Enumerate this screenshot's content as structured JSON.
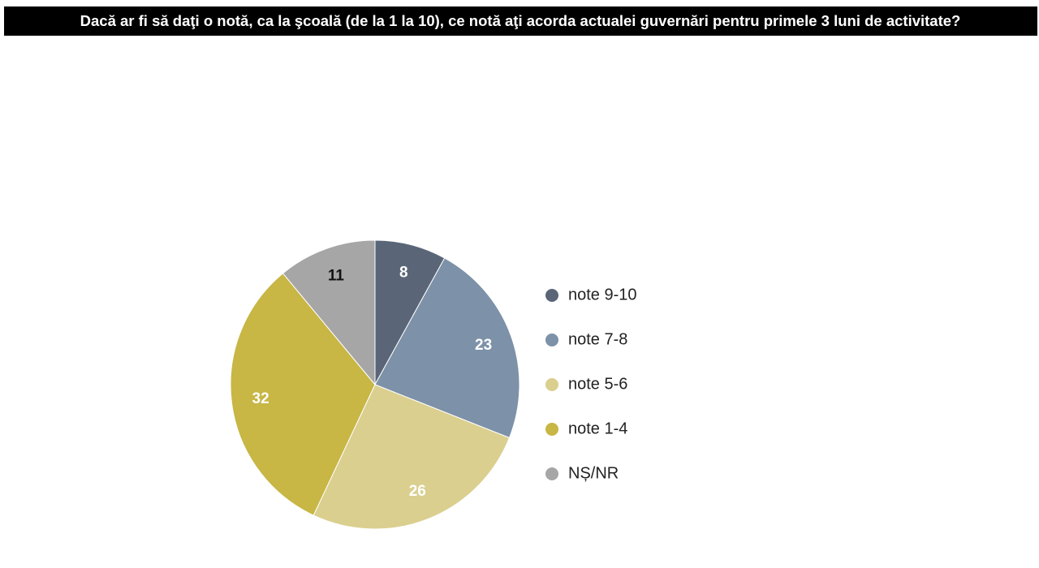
{
  "chart_data": {
    "type": "pie",
    "title": "Dacă ar fi să daţi o notă, ca la şcoală (de la 1 la 10), ce notă aţi acorda actualei guvernări pentru primele 3 luni de activitate?",
    "categories": [
      "note 9-10",
      "note 7-8",
      "note 5-6",
      "note 1-4",
      "NȘ/NR"
    ],
    "values": [
      8,
      23,
      26,
      32,
      11
    ],
    "colors": [
      "#5a6678",
      "#7d91a8",
      "#dacf8e",
      "#c8b645",
      "#a6a6a6"
    ],
    "legend": "right"
  }
}
